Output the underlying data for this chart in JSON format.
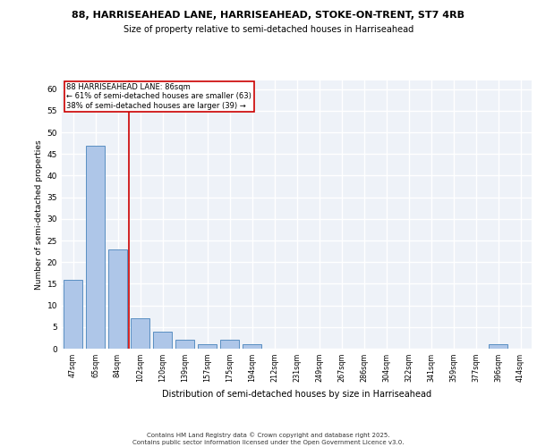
{
  "title_line1": "88, HARRISEAHEAD LANE, HARRISEAHEAD, STOKE-ON-TRENT, ST7 4RB",
  "title_line2": "Size of property relative to semi-detached houses in Harriseahead",
  "xlabel": "Distribution of semi-detached houses by size in Harriseahead",
  "ylabel": "Number of semi-detached properties",
  "categories": [
    "47sqm",
    "65sqm",
    "84sqm",
    "102sqm",
    "120sqm",
    "139sqm",
    "157sqm",
    "175sqm",
    "194sqm",
    "212sqm",
    "231sqm",
    "249sqm",
    "267sqm",
    "286sqm",
    "304sqm",
    "322sqm",
    "341sqm",
    "359sqm",
    "377sqm",
    "396sqm",
    "414sqm"
  ],
  "values": [
    16,
    47,
    23,
    7,
    4,
    2,
    1,
    2,
    1,
    0,
    0,
    0,
    0,
    0,
    0,
    0,
    0,
    0,
    0,
    1,
    0
  ],
  "bar_color": "#aec6e8",
  "bar_edge_color": "#5a8fc2",
  "annotation_title": "88 HARRISEAHEAD LANE: 86sqm",
  "annotation_line1": "← 61% of semi-detached houses are smaller (63)",
  "annotation_line2": "38% of semi-detached houses are larger (39) →",
  "vline_color": "#cc0000",
  "annotation_box_color": "#cc0000",
  "background_color": "#eef2f8",
  "grid_color": "#ffffff",
  "ylim": [
    0,
    62
  ],
  "yticks": [
    0,
    5,
    10,
    15,
    20,
    25,
    30,
    35,
    40,
    45,
    50,
    55,
    60
  ],
  "footer_line1": "Contains HM Land Registry data © Crown copyright and database right 2025.",
  "footer_line2": "Contains public sector information licensed under the Open Government Licence v3.0."
}
